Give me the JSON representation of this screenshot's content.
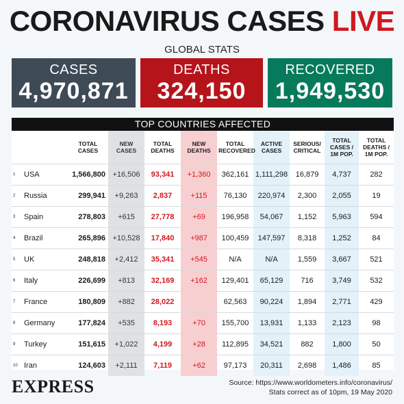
{
  "header": {
    "title_main": "CORONAVIRUS CASES",
    "title_live": "LIVE",
    "subtitle": "GLOBAL STATS"
  },
  "stats": {
    "cases": {
      "label": "CASES",
      "value": "4,970,871",
      "color": "#3f4a57"
    },
    "deaths": {
      "label": "DEATHS",
      "value": "324,150",
      "color": "#b6141b"
    },
    "recovered": {
      "label": "RECOVERED",
      "value": "1,949,530",
      "color": "#087a5c"
    }
  },
  "chart_data": {
    "type": "table",
    "title": "TOP COUNTRIES AFFECTED",
    "columns": [
      "",
      "",
      "TOTAL CASES",
      "NEW CASES",
      "TOTAL DEATHS",
      "NEW DEATHS",
      "TOTAL RECOVERED",
      "ACTIVE CASES",
      "SERIOUS/ CRITICAL",
      "TOTAL CASES / 1M POP.",
      "TOTAL DEATHS / 1M POP."
    ],
    "rows": [
      [
        "1",
        "USA",
        "1,566,800",
        "+16,506",
        "93,341",
        "+1,360",
        "362,161",
        "1,111,298",
        "16,879",
        "4,737",
        "282"
      ],
      [
        "2",
        "Russia",
        "299,941",
        "+9,263",
        "2,837",
        "+115",
        "76,130",
        "220,974",
        "2,300",
        "2,055",
        "19"
      ],
      [
        "3",
        "Spain",
        "278,803",
        "+615",
        "27,778",
        "+69",
        "196,958",
        "54,067",
        "1,152",
        "5,963",
        "594"
      ],
      [
        "4",
        "Brazil",
        "265,896",
        "+10,528",
        "17,840",
        "+987",
        "100,459",
        "147,597",
        "8,318",
        "1,252",
        "84"
      ],
      [
        "5",
        "UK",
        "248,818",
        "+2,412",
        "35,341",
        "+545",
        "N/A",
        "N/A",
        "1,559",
        "3,667",
        "521"
      ],
      [
        "6",
        "Italy",
        "226,699",
        "+813",
        "32,169",
        "+162",
        "129,401",
        "65,129",
        "716",
        "3,749",
        "532"
      ],
      [
        "7",
        "France",
        "180,809",
        "+882",
        "28,022",
        "",
        "62,563",
        "90,224",
        "1,894",
        "2,771",
        "429"
      ],
      [
        "8",
        "Germany",
        "177,824",
        "+535",
        "8,193",
        "+70",
        "155,700",
        "13,931",
        "1,133",
        "2,123",
        "98"
      ],
      [
        "9",
        "Turkey",
        "151,615",
        "+1,022",
        "4,199",
        "+28",
        "112,895",
        "34,521",
        "882",
        "1,800",
        "50"
      ],
      [
        "10",
        "Iran",
        "124,603",
        "+2,111",
        "7,119",
        "+62",
        "97,173",
        "20,311",
        "2,698",
        "1,486",
        "85"
      ]
    ],
    "colors": {
      "new_cases_bg": "#dfe2e5",
      "new_deaths_bg": "#f8cfd0",
      "highlight_bg": "#e3f1f8",
      "deaths_text": "#d0181f"
    }
  },
  "footer": {
    "logo": "EXPRESS",
    "source": "Source: https://www.worldometers.info/coronavirus/",
    "note": "Stats correct as of 10pm, 19 May 2020"
  }
}
